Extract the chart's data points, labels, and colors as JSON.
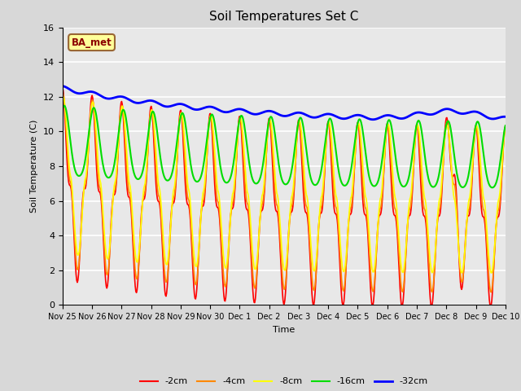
{
  "title": "Soil Temperatures Set C",
  "xlabel": "Time",
  "ylabel": "Soil Temperature (C)",
  "ylim": [
    0,
    16
  ],
  "yticks": [
    0,
    2,
    4,
    6,
    8,
    10,
    12,
    14,
    16
  ],
  "bg_color": "#d8d8d8",
  "plot_bg_color": "#e8e8e8",
  "label_box_text": "BA_met",
  "series_colors": [
    "#ff0000",
    "#ff8800",
    "#ffff00",
    "#00dd00",
    "#0000ff"
  ],
  "series_labels": [
    "-2cm",
    "-4cm",
    "-8cm",
    "-16cm",
    "-32cm"
  ],
  "series_linewidths": [
    1.2,
    1.2,
    1.2,
    1.5,
    2.0
  ],
  "n_points": 720,
  "t_max": 15.0,
  "xtick_labels": [
    "Nov 25",
    "Nov 26",
    "Nov 27",
    "Nov 28",
    "Nov 29",
    "Nov 30",
    "Dec 1",
    "Dec 2",
    "Dec 3",
    "Dec 4",
    "Dec 5",
    "Dec 6",
    "Dec 7",
    "Dec 8",
    "Dec 9",
    "Dec 10"
  ]
}
